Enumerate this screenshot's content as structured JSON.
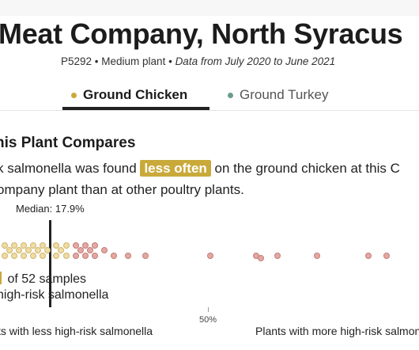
{
  "header": {
    "title": "Meat Company, North Syracus",
    "plant_id": "P5292",
    "sep1": " • ",
    "size": "Medium plant",
    "sep2": " • ",
    "date_range": "Data from July 2020 to June 2021"
  },
  "tabs": [
    {
      "label": "Ground Chicken",
      "dot_color": "#c9a93a",
      "active": true
    },
    {
      "label": "Ground Turkey",
      "dot_color": "#6a9e86",
      "active": false
    }
  ],
  "comparison": {
    "title": "his Plant Compares",
    "sentence_part1": "k salmonella was found ",
    "highlight": "less often",
    "sentence_part2": " on the ground chicken at this C",
    "sentence_line2": "ompany plant than at other poultry plants."
  },
  "chart_data": {
    "type": "scatter",
    "median_label": "Median: 17.9%",
    "median_percent": 17.9,
    "samples_line1": " of 52 samples",
    "samples_line2": "high-risk salmonella",
    "axis_tick_label": "50%",
    "left_end_label": "ts with less high-risk salmonella",
    "right_end_label": "Plants with more high-risk salmonella",
    "colors": {
      "lower": "#eedca5",
      "higher": "#e3a8a3",
      "highlight": "#c9a93a"
    }
  }
}
